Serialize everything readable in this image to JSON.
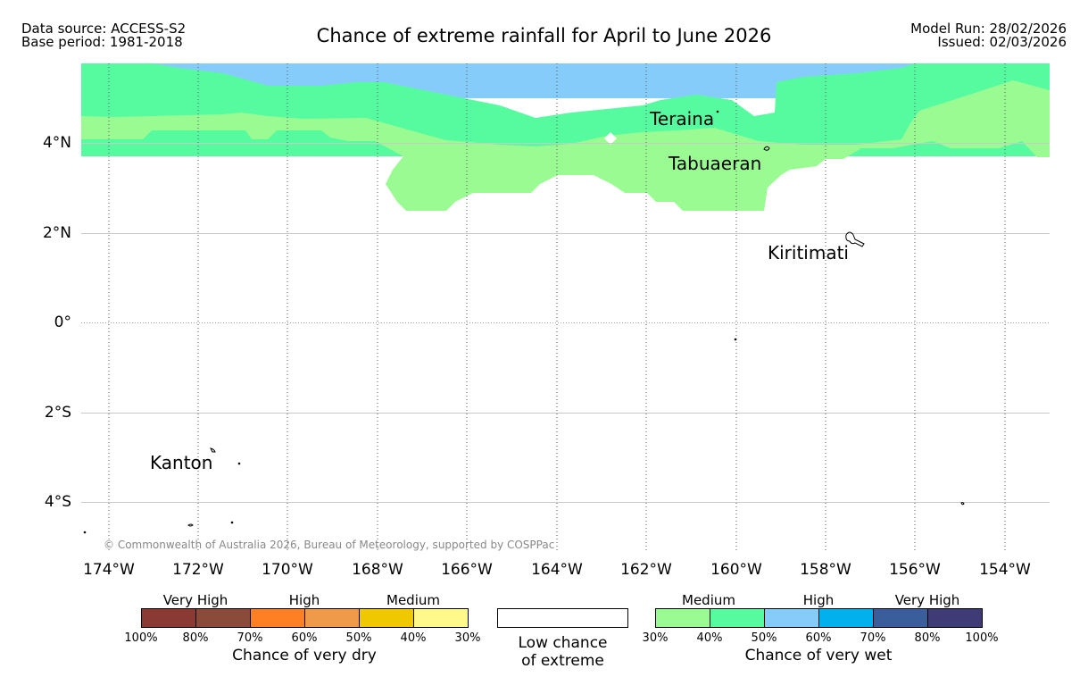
{
  "header": {
    "data_source": "Data source: ACCESS-S2",
    "base_period": "Base period: 1981-2018",
    "title": "Chance of extreme rainfall for April to June 2026",
    "model_run": "Model Run: 28/02/2026",
    "issued": "Issued: 02/03/2026"
  },
  "map": {
    "lat_labels": [
      "4°N",
      "2°N",
      "0°",
      "2°S",
      "4°S"
    ],
    "lon_labels": [
      "174°W",
      "172°W",
      "170°W",
      "168°W",
      "166°W",
      "164°W",
      "162°W",
      "160°W",
      "158°W",
      "156°W",
      "154°W"
    ],
    "places": {
      "teraina": "Teraina",
      "tabuaeran": "Tabuaeran",
      "kiritimati": "Kiritimati",
      "kanton": "Kanton"
    },
    "copyright": "© Commonwealth of Australia 2026, Bureau of Meteorology, supported by COSPPac"
  },
  "legend": {
    "dry": {
      "headers": [
        "Very High",
        "High",
        "Medium"
      ],
      "colors": [
        "#8B3A33",
        "#8B4B3A",
        "#FF8024",
        "#EE9A4A",
        "#F0C800",
        "#FFF88A"
      ],
      "ticks": [
        "100%",
        "80%",
        "70%",
        "60%",
        "50%",
        "40%",
        "30%"
      ],
      "caption": "Chance of very dry"
    },
    "neutral": {
      "color": "#ffffff",
      "caption_line1": "Low chance",
      "caption_line2": "of extreme"
    },
    "wet": {
      "headers": [
        "Medium",
        "High",
        "Very High"
      ],
      "colors": [
        "#9AFB93",
        "#56FB9F",
        "#86CCFB",
        "#00B1EE",
        "#395E9B",
        "#3F3B77"
      ],
      "ticks": [
        "30%",
        "40%",
        "50%",
        "60%",
        "70%",
        "80%",
        "100%"
      ],
      "caption": "Chance of very wet"
    }
  }
}
